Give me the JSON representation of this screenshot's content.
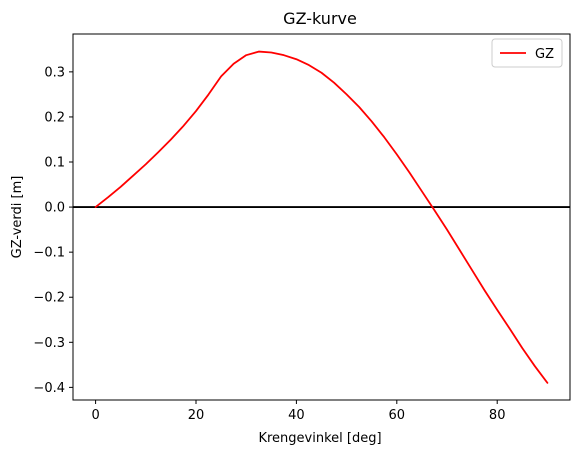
{
  "chart_data": {
    "type": "line",
    "title": "GZ-kurve",
    "xlabel": "Krengevinkel [deg]",
    "ylabel": "GZ-verdi [m]",
    "xlim": [
      -4.5,
      94.5
    ],
    "ylim": [
      -0.428,
      0.384
    ],
    "xticks": [
      0,
      20,
      40,
      60,
      80
    ],
    "xtick_labels": [
      "0",
      "20",
      "40",
      "60",
      "80"
    ],
    "yticks": [
      -0.4,
      -0.3,
      -0.2,
      -0.1,
      0.0,
      0.1,
      0.2,
      0.3
    ],
    "ytick_labels": [
      "−0.4",
      "−0.3",
      "−0.2",
      "−0.1",
      "0.0",
      "0.1",
      "0.2",
      "0.3"
    ],
    "grid": false,
    "legend_position": "top-right",
    "reference_line": {
      "y": 0.0,
      "color": "#000000"
    },
    "series": [
      {
        "name": "GZ",
        "color": "#ff0000",
        "x": [
          0,
          2.5,
          5,
          7.5,
          10,
          12.5,
          15,
          17.5,
          20,
          22.5,
          25,
          27.5,
          30,
          32.5,
          35,
          37.5,
          40,
          42.5,
          45,
          47.5,
          50,
          52.5,
          55,
          57.5,
          60,
          62.5,
          65,
          67.5,
          70,
          72.5,
          75,
          77.5,
          80,
          82.5,
          85,
          87.5,
          90
        ],
        "y": [
          0.0,
          0.022,
          0.045,
          0.07,
          0.095,
          0.122,
          0.15,
          0.18,
          0.213,
          0.25,
          0.29,
          0.318,
          0.337,
          0.345,
          0.343,
          0.337,
          0.328,
          0.315,
          0.298,
          0.276,
          0.25,
          0.222,
          0.19,
          0.155,
          0.117,
          0.077,
          0.035,
          -0.007,
          -0.05,
          -0.095,
          -0.14,
          -0.185,
          -0.228,
          -0.27,
          -0.313,
          -0.353,
          -0.39
        ]
      }
    ]
  }
}
